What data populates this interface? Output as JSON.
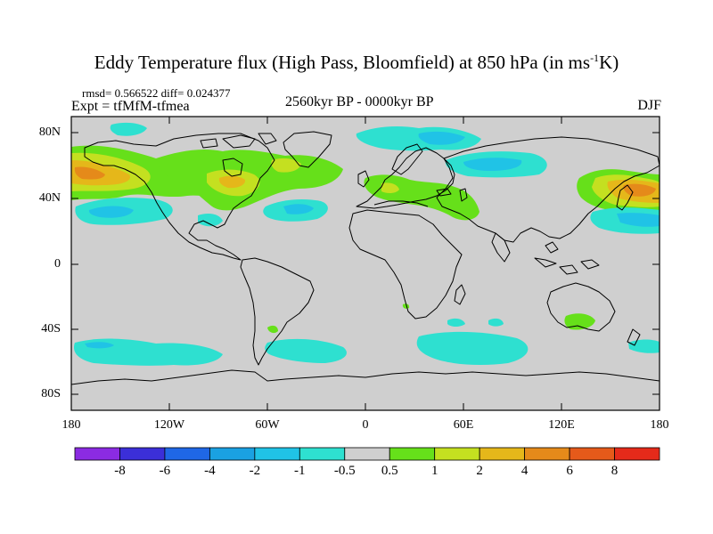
{
  "title": {
    "prefix": "Eddy Temperature flux (High Pass, Bloomfield) at 850 hPa (in ms",
    "superscript": "-1",
    "suffix": "K)"
  },
  "stats": "rmsd= 0.566522 diff= 0.024377",
  "experiment": "Expt = tfMfM-tfmea",
  "period": "2560kyr BP - 0000kyr BP",
  "season": "DJF",
  "axes": {
    "lat_labels": [
      "80N",
      "40N",
      "0",
      "40S",
      "80S"
    ],
    "lon_labels": [
      "180",
      "120W",
      "60W",
      "0",
      "60E",
      "120E",
      "180"
    ]
  },
  "colorbar": {
    "levels": [
      "-8",
      "-6",
      "-4",
      "-2",
      "-1",
      "-0.5",
      "0.5",
      "1",
      "2",
      "4",
      "6",
      "8"
    ],
    "colors": [
      "#8b2be2",
      "#3b2fd8",
      "#1f67e6",
      "#1aa1e2",
      "#20c3e6",
      "#2ee0d0",
      "#cfcfcf",
      "#66e01a",
      "#c4e020",
      "#e5b71a",
      "#e58a1a",
      "#e55a1a",
      "#e52a1a"
    ]
  },
  "map_colors": {
    "background": "#cfcfcf",
    "neg_weak": "#2ee0d0",
    "neg_mid": "#20c3e6",
    "pos_weak": "#66e01a",
    "pos_mid": "#c4e020",
    "pos_strong": "#e5b71a",
    "pos_max": "#e58a1a"
  }
}
